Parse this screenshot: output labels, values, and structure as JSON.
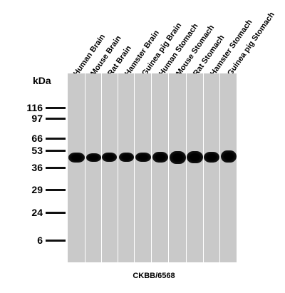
{
  "lanes": [
    {
      "label": "Human Brain"
    },
    {
      "label": "Mouse Brain"
    },
    {
      "label": "Rat Brain"
    },
    {
      "label": "Hamster Brain"
    },
    {
      "label": "Guinea pig Brain"
    },
    {
      "label": "Human Stomach"
    },
    {
      "label": "Mouse Stomach"
    },
    {
      "label": "Rat Stomach"
    },
    {
      "label": "Hamster Stomach"
    },
    {
      "label": "Guinea pig Stomach"
    }
  ],
  "ladder": {
    "unit": "kDa",
    "markers": [
      {
        "label": "116"
      },
      {
        "label": "97"
      },
      {
        "label": "66"
      },
      {
        "label": "53"
      },
      {
        "label": "36"
      },
      {
        "label": "29"
      },
      {
        "label": "24"
      },
      {
        "label": "6"
      }
    ]
  },
  "caption": "CKBB/6568",
  "colors": {
    "membrane": "#c9c9c9",
    "band": "#000000",
    "text": "#000000"
  }
}
